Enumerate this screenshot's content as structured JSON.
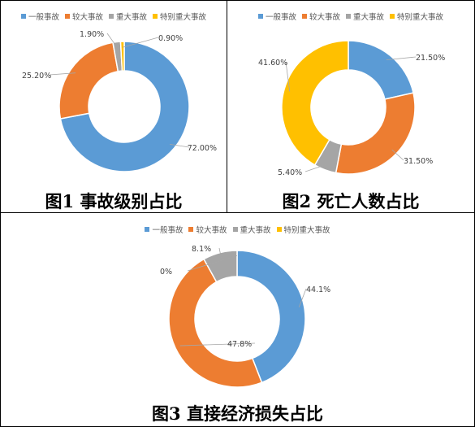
{
  "colors": {
    "general": "#5B9BD5",
    "larger": "#ED7D31",
    "major": "#A5A5A5",
    "especially_major": "#FFC000"
  },
  "legend_labels": [
    "一般事故",
    "较大事故",
    "重大事故",
    "特别重大事故"
  ],
  "chart_data": [
    {
      "type": "pie",
      "variant": "donut",
      "caption": "图1 事故级别占比",
      "categories": [
        "一般事故",
        "较大事故",
        "重大事故",
        "特别重大事故"
      ],
      "values": [
        72.0,
        25.2,
        1.9,
        0.9
      ],
      "data_labels": [
        "72.00%",
        "25.20%",
        "1.90%",
        "0.90%"
      ],
      "legend_position": "top"
    },
    {
      "type": "pie",
      "variant": "donut",
      "caption": "图2 死亡人数占比",
      "categories": [
        "一般事故",
        "较大事故",
        "重大事故",
        "特别重大事故"
      ],
      "values": [
        21.5,
        31.5,
        5.4,
        41.6
      ],
      "data_labels": [
        "21.50%",
        "31.50%",
        "5.40%",
        "41.60%"
      ],
      "legend_position": "top"
    },
    {
      "type": "pie",
      "variant": "donut",
      "caption": "图3 直接经济损失占比",
      "categories": [
        "一般事故",
        "较大事故",
        "重大事故",
        "特别重大事故"
      ],
      "values": [
        44.1,
        47.8,
        8.1,
        0
      ],
      "data_labels": [
        "44.1%",
        "47.8%",
        "8.1%",
        "0%"
      ],
      "legend_position": "top"
    }
  ]
}
